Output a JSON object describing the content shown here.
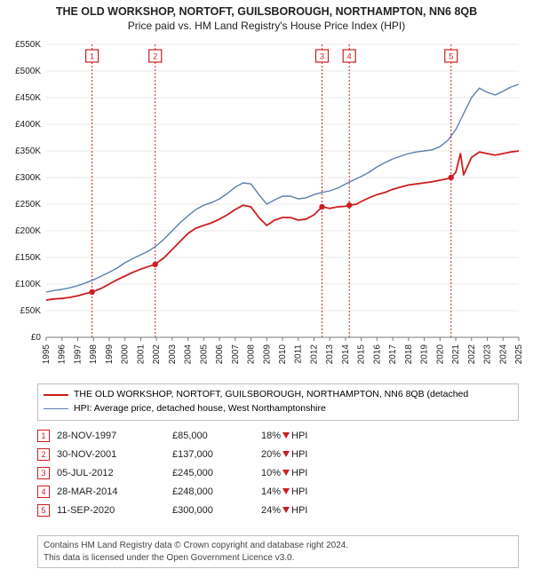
{
  "title": {
    "line1": "THE OLD WORKSHOP, NORTOFT, GUILSBOROUGH, NORTHAMPTON, NN6 8QB",
    "line2": "Price paid vs. HM Land Registry's House Price Index (HPI)",
    "fontsize_line1": 12.5,
    "fontsize_line2": 12
  },
  "chart": {
    "type": "line",
    "background_color": "#ffffff",
    "grid_color": "#e8e8e8",
    "x": {
      "min": 1995,
      "max": 2025,
      "ticks": [
        1995,
        1996,
        1997,
        1998,
        1999,
        2000,
        2001,
        2002,
        2003,
        2004,
        2005,
        2006,
        2007,
        2008,
        2009,
        2010,
        2011,
        2012,
        2013,
        2014,
        2015,
        2016,
        2017,
        2018,
        2019,
        2020,
        2021,
        2022,
        2023,
        2024,
        2025
      ],
      "label_fontsize": 10,
      "rotate": -90
    },
    "y": {
      "min": 0,
      "max": 550,
      "ticks": [
        0,
        50,
        100,
        150,
        200,
        250,
        300,
        350,
        400,
        450,
        500,
        550
      ],
      "tick_labels": [
        "£0",
        "£50K",
        "£100K",
        "£150K",
        "£200K",
        "£250K",
        "£300K",
        "£350K",
        "£400K",
        "£450K",
        "£500K",
        "£550K"
      ],
      "label_fontsize": 10
    },
    "series": [
      {
        "name": "property",
        "color": "#cc1e1e",
        "width": 1.8,
        "marker_color": "#cc1e1e",
        "marker_size": 3,
        "data": [
          [
            1995,
            70
          ],
          [
            1995.5,
            72
          ],
          [
            1996,
            73
          ],
          [
            1996.5,
            75
          ],
          [
            1997,
            78
          ],
          [
            1997.5,
            82
          ],
          [
            1997.91,
            85
          ],
          [
            1998.5,
            92
          ],
          [
            1999,
            100
          ],
          [
            1999.5,
            108
          ],
          [
            2000,
            115
          ],
          [
            2000.5,
            122
          ],
          [
            2001,
            128
          ],
          [
            2001.5,
            133
          ],
          [
            2001.92,
            137
          ],
          [
            2002.5,
            150
          ],
          [
            2003,
            165
          ],
          [
            2003.5,
            180
          ],
          [
            2004,
            195
          ],
          [
            2004.5,
            205
          ],
          [
            2005,
            210
          ],
          [
            2005.5,
            215
          ],
          [
            2006,
            222
          ],
          [
            2006.5,
            230
          ],
          [
            2007,
            240
          ],
          [
            2007.5,
            248
          ],
          [
            2008,
            245
          ],
          [
            2008.5,
            225
          ],
          [
            2009,
            210
          ],
          [
            2009.5,
            220
          ],
          [
            2010,
            225
          ],
          [
            2010.5,
            225
          ],
          [
            2011,
            220
          ],
          [
            2011.5,
            222
          ],
          [
            2012,
            230
          ],
          [
            2012.51,
            245
          ],
          [
            2013,
            242
          ],
          [
            2013.5,
            245
          ],
          [
            2014,
            246
          ],
          [
            2014.24,
            248
          ],
          [
            2014.7,
            250
          ],
          [
            2015,
            255
          ],
          [
            2015.5,
            262
          ],
          [
            2016,
            268
          ],
          [
            2016.5,
            272
          ],
          [
            2017,
            278
          ],
          [
            2017.5,
            282
          ],
          [
            2018,
            286
          ],
          [
            2018.5,
            288
          ],
          [
            2019,
            290
          ],
          [
            2019.5,
            292
          ],
          [
            2020,
            295
          ],
          [
            2020.5,
            298
          ],
          [
            2020.7,
            300
          ],
          [
            2021,
            310
          ],
          [
            2021.3,
            345
          ],
          [
            2021.5,
            305
          ],
          [
            2022,
            338
          ],
          [
            2022.5,
            348
          ],
          [
            2023,
            345
          ],
          [
            2023.5,
            342
          ],
          [
            2024,
            345
          ],
          [
            2024.5,
            348
          ],
          [
            2025,
            350
          ]
        ]
      },
      {
        "name": "hpi",
        "color": "#5b7fb0",
        "width": 1.4,
        "data": [
          [
            1995,
            85
          ],
          [
            1995.5,
            88
          ],
          [
            1996,
            90
          ],
          [
            1996.5,
            93
          ],
          [
            1997,
            97
          ],
          [
            1997.5,
            102
          ],
          [
            1998,
            108
          ],
          [
            1998.5,
            115
          ],
          [
            1999,
            122
          ],
          [
            1999.5,
            130
          ],
          [
            2000,
            140
          ],
          [
            2000.5,
            148
          ],
          [
            2001,
            155
          ],
          [
            2001.5,
            162
          ],
          [
            2002,
            172
          ],
          [
            2002.5,
            185
          ],
          [
            2003,
            200
          ],
          [
            2003.5,
            215
          ],
          [
            2004,
            228
          ],
          [
            2004.5,
            240
          ],
          [
            2005,
            248
          ],
          [
            2005.5,
            253
          ],
          [
            2006,
            260
          ],
          [
            2006.5,
            270
          ],
          [
            2007,
            282
          ],
          [
            2007.5,
            290
          ],
          [
            2008,
            288
          ],
          [
            2008.5,
            268
          ],
          [
            2009,
            250
          ],
          [
            2009.5,
            258
          ],
          [
            2010,
            265
          ],
          [
            2010.5,
            265
          ],
          [
            2011,
            260
          ],
          [
            2011.5,
            262
          ],
          [
            2012,
            268
          ],
          [
            2012.5,
            272
          ],
          [
            2013,
            275
          ],
          [
            2013.5,
            280
          ],
          [
            2014,
            288
          ],
          [
            2014.5,
            295
          ],
          [
            2015,
            302
          ],
          [
            2015.5,
            310
          ],
          [
            2016,
            320
          ],
          [
            2016.5,
            328
          ],
          [
            2017,
            335
          ],
          [
            2017.5,
            340
          ],
          [
            2018,
            345
          ],
          [
            2018.5,
            348
          ],
          [
            2019,
            350
          ],
          [
            2019.5,
            352
          ],
          [
            2020,
            358
          ],
          [
            2020.5,
            370
          ],
          [
            2021,
            390
          ],
          [
            2021.5,
            420
          ],
          [
            2022,
            450
          ],
          [
            2022.5,
            468
          ],
          [
            2023,
            460
          ],
          [
            2023.5,
            455
          ],
          [
            2024,
            462
          ],
          [
            2024.5,
            470
          ],
          [
            2025,
            475
          ]
        ]
      }
    ],
    "sale_markers": [
      {
        "n": 1,
        "year": 1997.91,
        "value": 85,
        "color": "#cc1e1e"
      },
      {
        "n": 2,
        "year": 2001.92,
        "value": 137,
        "color": "#cc1e1e"
      },
      {
        "n": 3,
        "year": 2012.51,
        "value": 245,
        "color": "#cc1e1e"
      },
      {
        "n": 4,
        "year": 2014.24,
        "value": 248,
        "color": "#cc1e1e"
      },
      {
        "n": 5,
        "year": 2020.7,
        "value": 300,
        "color": "#cc1e1e"
      }
    ]
  },
  "legend": {
    "items": [
      {
        "label": "THE OLD WORKSHOP, NORTOFT, GUILSBOROUGH, NORTHAMPTON, NN6 8QB (detached",
        "color": "#cc1e1e",
        "width": 2
      },
      {
        "label": "HPI: Average price, detached house, West Northamptonshire",
        "color": "#5b7fb0",
        "width": 1.5
      }
    ]
  },
  "sales": {
    "rows": [
      {
        "n": "1",
        "date": "28-NOV-1997",
        "price": "£85,000",
        "delta": "18%",
        "dir": "down",
        "ref": "HPI"
      },
      {
        "n": "2",
        "date": "30-NOV-2001",
        "price": "£137,000",
        "delta": "20%",
        "dir": "down",
        "ref": "HPI"
      },
      {
        "n": "3",
        "date": "05-JUL-2012",
        "price": "£245,000",
        "delta": "10%",
        "dir": "down",
        "ref": "HPI"
      },
      {
        "n": "4",
        "date": "28-MAR-2014",
        "price": "£248,000",
        "delta": "14%",
        "dir": "down",
        "ref": "HPI"
      },
      {
        "n": "5",
        "date": "11-SEP-2020",
        "price": "£300,000",
        "delta": "24%",
        "dir": "down",
        "ref": "HPI"
      }
    ]
  },
  "footer": {
    "line1": "Contains HM Land Registry data © Crown copyright and database right 2024.",
    "line2": "This data is licensed under the Open Government Licence v3.0."
  },
  "colors": {
    "property": "#cc1e1e",
    "hpi": "#5b7fb0",
    "grid": "#e8e8e8",
    "border": "#bfbfbf",
    "text": "#222222"
  }
}
